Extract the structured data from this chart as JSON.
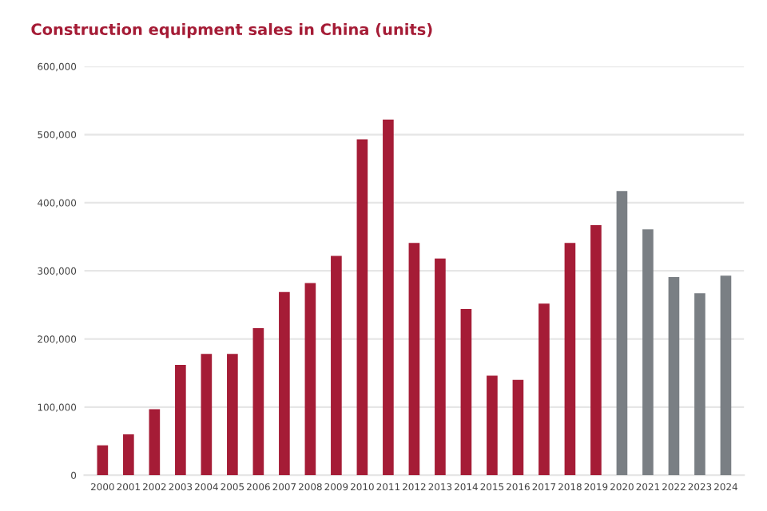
{
  "chart_data": {
    "type": "bar",
    "title": "Construction equipment sales in China (units)",
    "categories": [
      "2000",
      "2001",
      "2002",
      "2003",
      "2004",
      "2005",
      "2006",
      "2007",
      "2008",
      "2009",
      "2010",
      "2011",
      "2012",
      "2013",
      "2014",
      "2015",
      "2016",
      "2017",
      "2018",
      "2019",
      "2020",
      "2021",
      "2022",
      "2023",
      "2024"
    ],
    "values": [
      44000,
      60000,
      97000,
      162000,
      178000,
      178000,
      216000,
      269000,
      282000,
      322000,
      493000,
      522000,
      341000,
      318000,
      244000,
      146000,
      140000,
      252000,
      341000,
      367000,
      417000,
      361000,
      291000,
      267000,
      293000
    ],
    "colors": [
      "#a51c36",
      "#a51c36",
      "#a51c36",
      "#a51c36",
      "#a51c36",
      "#a51c36",
      "#a51c36",
      "#a51c36",
      "#a51c36",
      "#a51c36",
      "#a51c36",
      "#a51c36",
      "#a51c36",
      "#a51c36",
      "#a51c36",
      "#a51c36",
      "#a51c36",
      "#a51c36",
      "#a51c36",
      "#a51c36",
      "#7a7f84",
      "#7a7f84",
      "#7a7f84",
      "#7a7f84",
      "#7a7f84"
    ],
    "ylim": [
      0,
      600000
    ],
    "yticks": [
      0,
      {
        "value": 100000,
        "label": "100,000"
      },
      {
        "value": 200000,
        "label": "200,000"
      },
      {
        "value": 300000,
        "label": "300,000"
      },
      {
        "value": 400000,
        "label": "400,000"
      },
      {
        "value": 500000,
        "label": "500,000"
      },
      {
        "value": 600000,
        "label": "600,000"
      }
    ],
    "grid": "y",
    "legend": false
  }
}
